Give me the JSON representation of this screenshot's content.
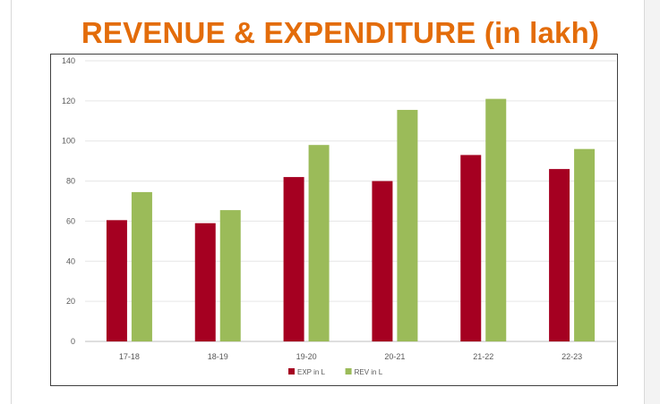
{
  "page": {
    "title": "REVENUE & EXPENDITURE (in lakh)",
    "title_color": "#e36c0a"
  },
  "chart_data": {
    "type": "bar",
    "title": "REVENUE & EXPENDITURE (in lakh)",
    "categories": [
      "17-18",
      "18-19",
      "19-20",
      "20-21",
      "21-22",
      "22-23"
    ],
    "series": [
      {
        "name": "EXP in L",
        "color": "#a50021",
        "values": [
          60.5,
          59,
          82,
          80,
          93,
          86
        ]
      },
      {
        "name": "REV in L",
        "color": "#9bbb59",
        "values": [
          74.5,
          65.5,
          98,
          115.5,
          121,
          96
        ]
      }
    ],
    "ylim": [
      0,
      140
    ],
    "yticks": [
      "0",
      "20",
      "40",
      "60",
      "80",
      "100",
      "120",
      "140"
    ],
    "grid": true,
    "legend_position": "bottom"
  }
}
